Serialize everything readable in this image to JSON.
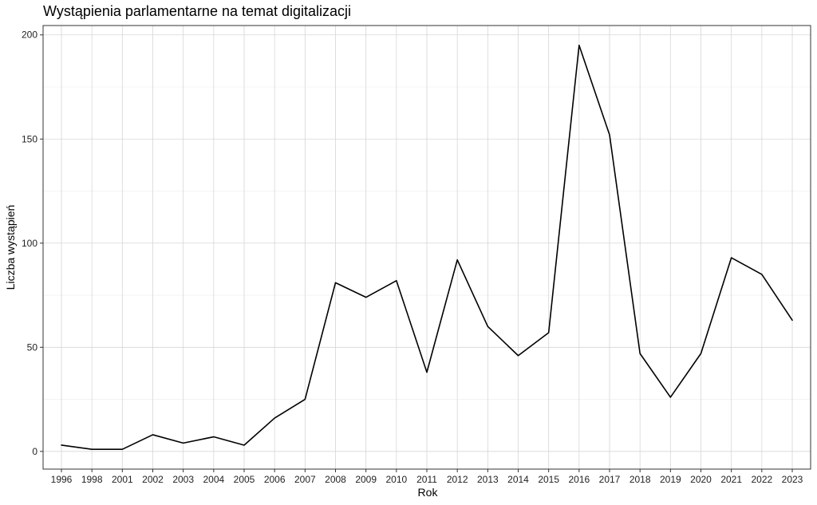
{
  "chart_data": {
    "type": "line",
    "title": "Wystąpienia parlamentarne na temat digitalizacji",
    "xlabel": "Rok",
    "ylabel": "Liczba wystąpień",
    "categories": [
      "1996",
      "1998",
      "2001",
      "2002",
      "2003",
      "2004",
      "2005",
      "2006",
      "2007",
      "2008",
      "2009",
      "2010",
      "2011",
      "2012",
      "2013",
      "2014",
      "2015",
      "2016",
      "2017",
      "2018",
      "2019",
      "2020",
      "2021",
      "2022",
      "2023"
    ],
    "series": [
      {
        "values": [
          3,
          1,
          1,
          8,
          4,
          7,
          3,
          16,
          25,
          81,
          74,
          82,
          38,
          92,
          60,
          46,
          57,
          195,
          152,
          47,
          26,
          47,
          93,
          85,
          63
        ],
        "color": "#000000"
      }
    ],
    "ylim": [
      -8.5,
      204.5
    ],
    "yticks": [
      0,
      50,
      100,
      150,
      200
    ],
    "grid": true,
    "legend": "none",
    "colors": {
      "grid_major": "#d6d6d6",
      "grid_minor": "#ececec",
      "panel_border": "#333333",
      "line": "#000000"
    }
  }
}
